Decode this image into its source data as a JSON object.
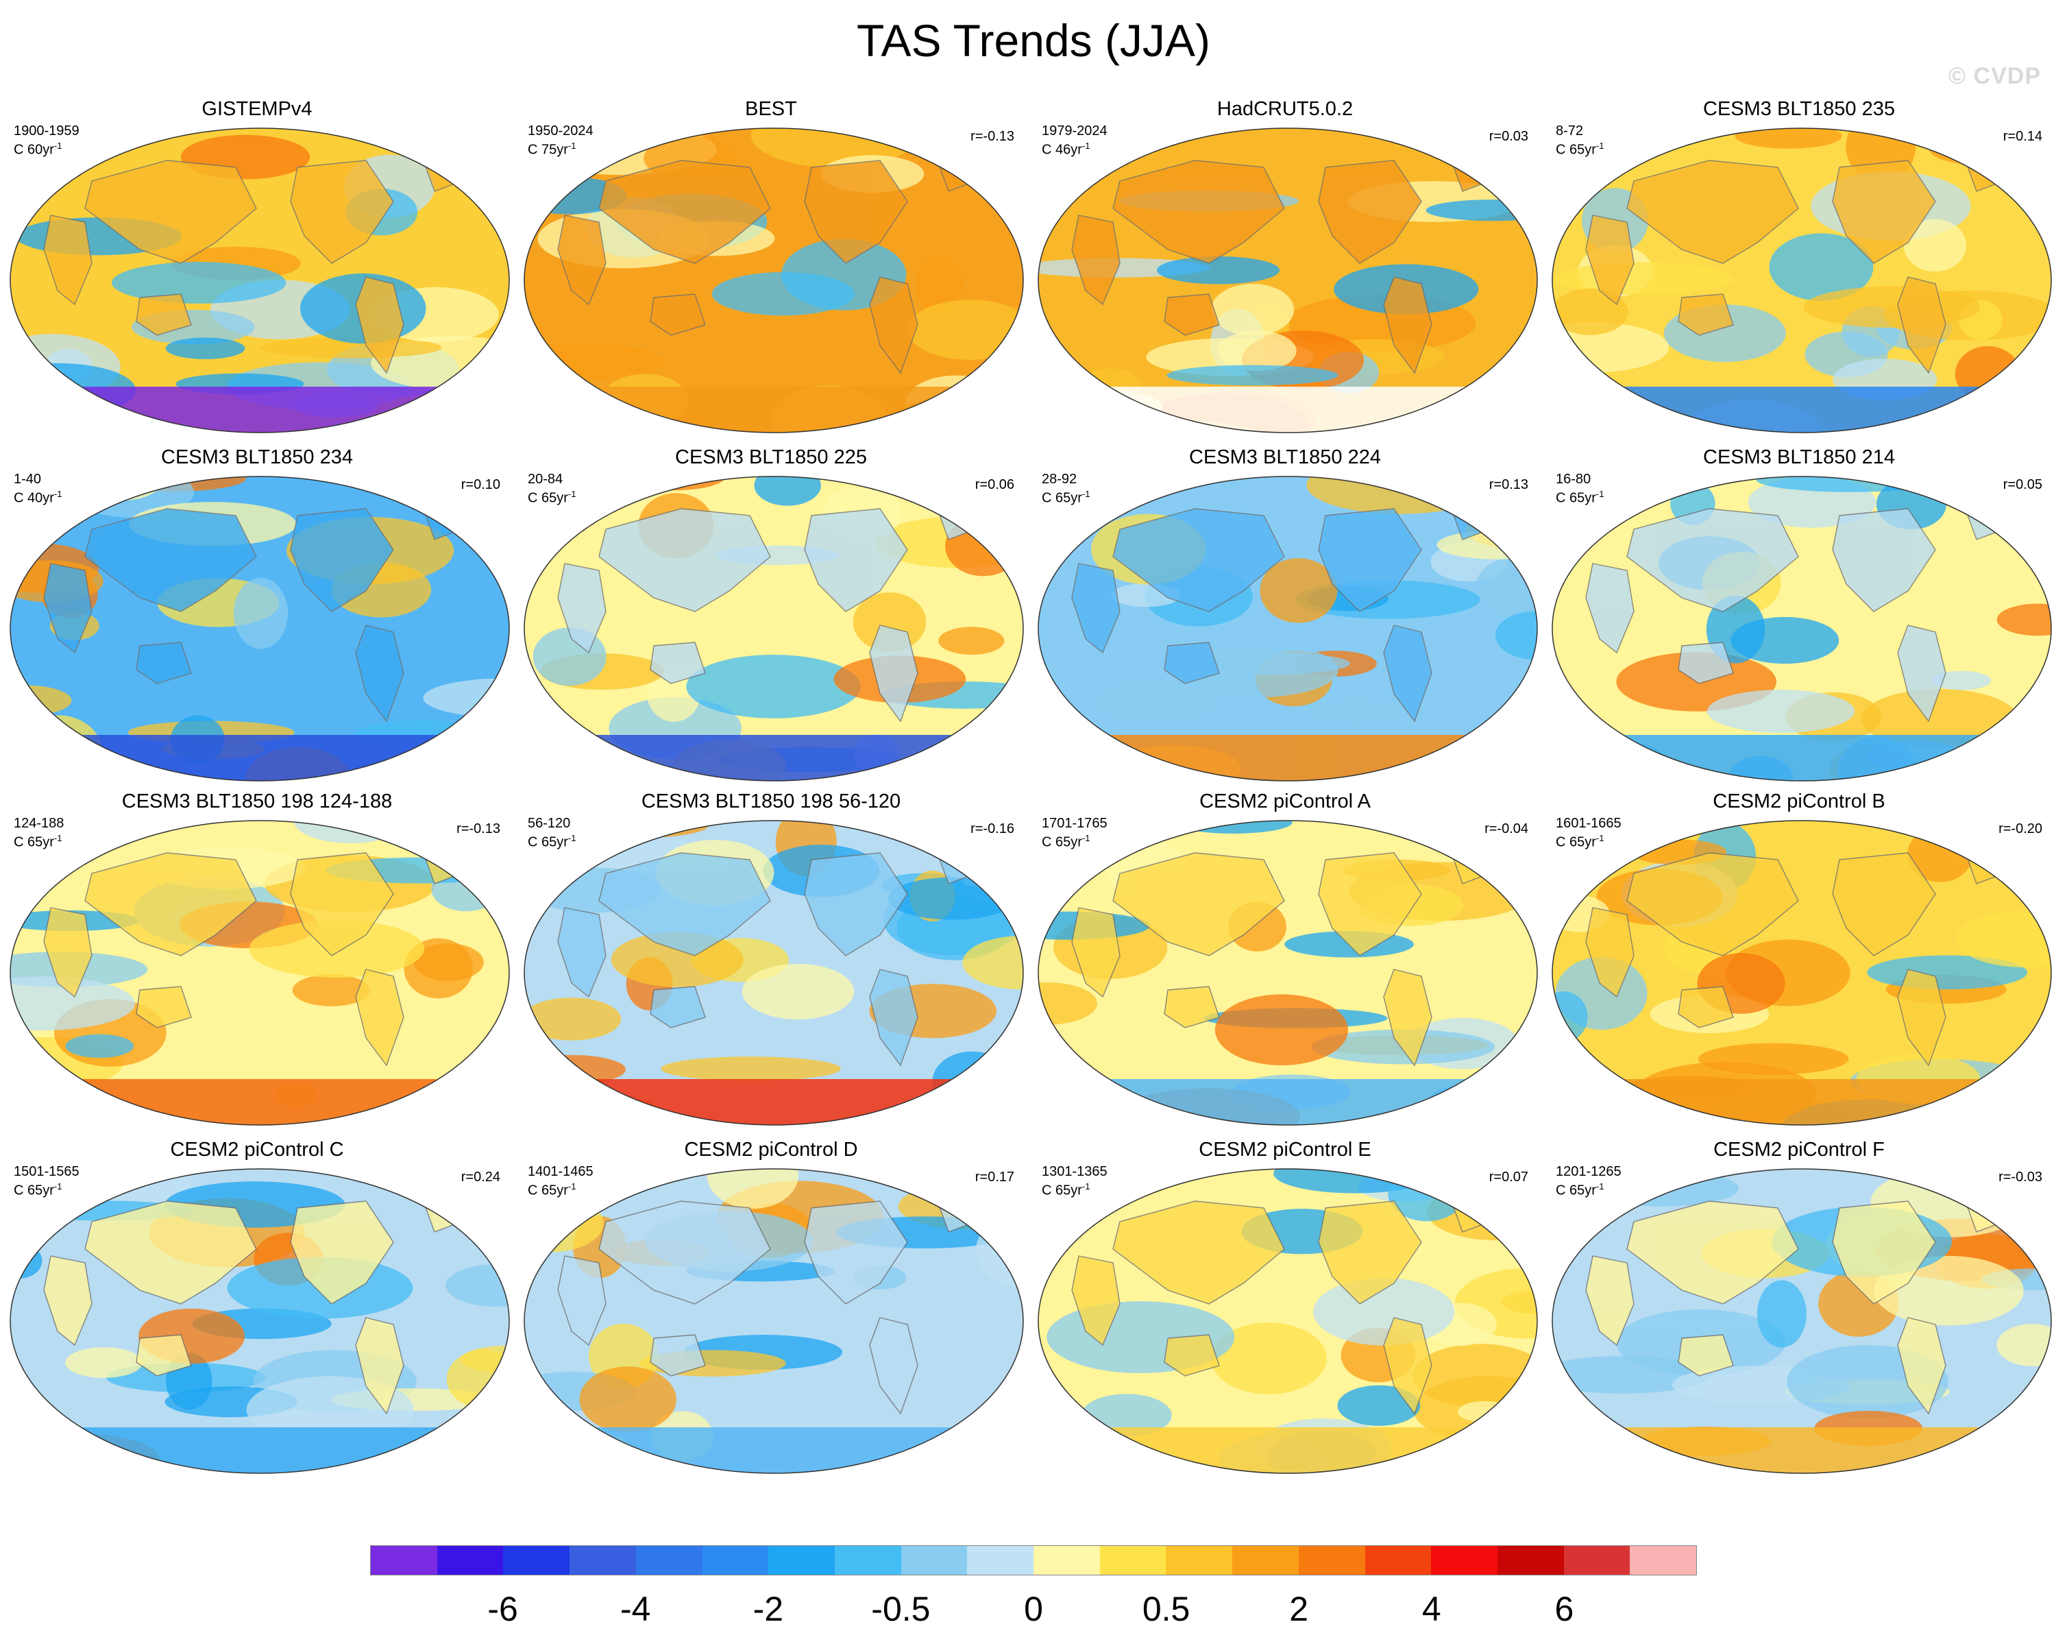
{
  "title": "TAS Trends (JJA)",
  "watermark": "© CVDP",
  "panels": [
    {
      "title": "GISTEMPv4",
      "period": "1900-1959",
      "units": "C 60yr",
      "units_sup": "-1",
      "r": "",
      "seed": 11,
      "land": "#f9b82a",
      "ocean": "#fbcf3a",
      "south": "#7a2ae0"
    },
    {
      "title": "BEST",
      "period": "1950-2024",
      "units": "C 75yr",
      "units_sup": "-1",
      "r": "r=-0.13",
      "seed": 23,
      "land": "#f39a1a",
      "ocean": "#f7a21e",
      "south": "#f39a1a"
    },
    {
      "title": "HadCRUT5.0.2",
      "period": "1979-2024",
      "units": "C 46yr",
      "units_sup": "-1",
      "r": "r=0.03",
      "seed": 37,
      "land": "#f39a1a",
      "ocean": "#f9b82a",
      "south": "#ffffff"
    },
    {
      "title": "CESM3 BLT1850 235",
      "period": "8-72",
      "units": "C 65yr",
      "units_sup": "-1",
      "r": "r=0.14",
      "seed": 41,
      "land": "#f9b82a",
      "ocean": "#fdda4a",
      "south": "#2a86f0"
    },
    {
      "title": "CESM3 BLT1850 234",
      "period": "1-40",
      "units": "C 40yr",
      "units_sup": "-1",
      "r": "r=0.10",
      "seed": 53,
      "land": "#3aaaf2",
      "ocean": "#56b6f4",
      "south": "#2a52dc"
    },
    {
      "title": "CESM3 BLT1850 225",
      "period": "20-84",
      "units": "C 65yr",
      "units_sup": "-1",
      "r": "r=0.06",
      "seed": 67,
      "land": "#b8dcf2",
      "ocean": "#fff59a",
      "south": "#2a52dc"
    },
    {
      "title": "CESM3 BLT1850 224",
      "period": "28-92",
      "units": "C 65yr",
      "units_sup": "-1",
      "r": "r=0.13",
      "seed": 71,
      "land": "#56b6f4",
      "ocean": "#88ccf4",
      "south": "#f58a12"
    },
    {
      "title": "CESM3 BLT1850 214",
      "period": "16-80",
      "units": "C 65yr",
      "units_sup": "-1",
      "r": "r=0.05",
      "seed": 83,
      "land": "#b8dcf2",
      "ocean": "#fff59a",
      "south": "#3aaaf2"
    },
    {
      "title": "CESM3 BLT1850 198 124-188",
      "period": "124-188",
      "units": "C 65yr",
      "units_sup": "-1",
      "r": "r=-0.13",
      "seed": 97,
      "land": "#fdda4a",
      "ocean": "#fff59a",
      "south": "#f36a10"
    },
    {
      "title": "CESM3 BLT1850 198 56-120",
      "period": "56-120",
      "units": "C 65yr",
      "units_sup": "-1",
      "r": "r=-0.16",
      "seed": 101,
      "land": "#88ccf4",
      "ocean": "#b8dcf2",
      "south": "#f03010"
    },
    {
      "title": "CESM2 piControl A",
      "period": "1701-1765",
      "units": "C 65yr",
      "units_sup": "-1",
      "r": "r=-0.04",
      "seed": 113,
      "land": "#fdda4a",
      "ocean": "#fff59a",
      "south": "#56b6f4"
    },
    {
      "title": "CESM2 piControl B",
      "period": "1601-1665",
      "units": "C 65yr",
      "units_sup": "-1",
      "r": "r=-0.20",
      "seed": 127,
      "land": "#fbcf3a",
      "ocean": "#fdda4a",
      "south": "#f39a1a"
    },
    {
      "title": "CESM2 piControl C",
      "period": "1501-1565",
      "units": "C 65yr",
      "units_sup": "-1",
      "r": "r=0.24",
      "seed": 131,
      "land": "#fff59a",
      "ocean": "#b8dcf2",
      "south": "#3aaaf2"
    },
    {
      "title": "CESM2 piControl D",
      "period": "1401-1465",
      "units": "C 65yr",
      "units_sup": "-1",
      "r": "r=0.17",
      "seed": 149,
      "land": "#b8dcf2",
      "ocean": "#b8dcf2",
      "south": "#56b6f4"
    },
    {
      "title": "CESM2 piControl E",
      "period": "1301-1365",
      "units": "C 65yr",
      "units_sup": "-1",
      "r": "r=0.07",
      "seed": 157,
      "land": "#fdda4a",
      "ocean": "#fff59a",
      "south": "#fbcf3a"
    },
    {
      "title": "CESM2 piControl F",
      "period": "1201-1265",
      "units": "C 65yr",
      "units_sup": "-1",
      "r": "r=-0.03",
      "seed": 167,
      "land": "#fff59a",
      "ocean": "#b8dcf2",
      "south": "#f9b82a"
    }
  ],
  "colorbar": {
    "colors": [
      "#7a2ae0",
      "#3a14e6",
      "#2038e8",
      "#3a5ee0",
      "#2f78ec",
      "#2a8cf2",
      "#1ea6f2",
      "#44bcf4",
      "#88ccf0",
      "#bfe2f4",
      "#fff8a8",
      "#fde24a",
      "#fbc42c",
      "#f99e16",
      "#f77a0e",
      "#f2420e",
      "#f40c0c",
      "#c80606",
      "#d83434",
      "#fbb2b2"
    ],
    "labels": [
      "-6",
      "-4",
      "-2",
      "-0.5",
      "0",
      "0.5",
      "2",
      "4",
      "6"
    ]
  }
}
